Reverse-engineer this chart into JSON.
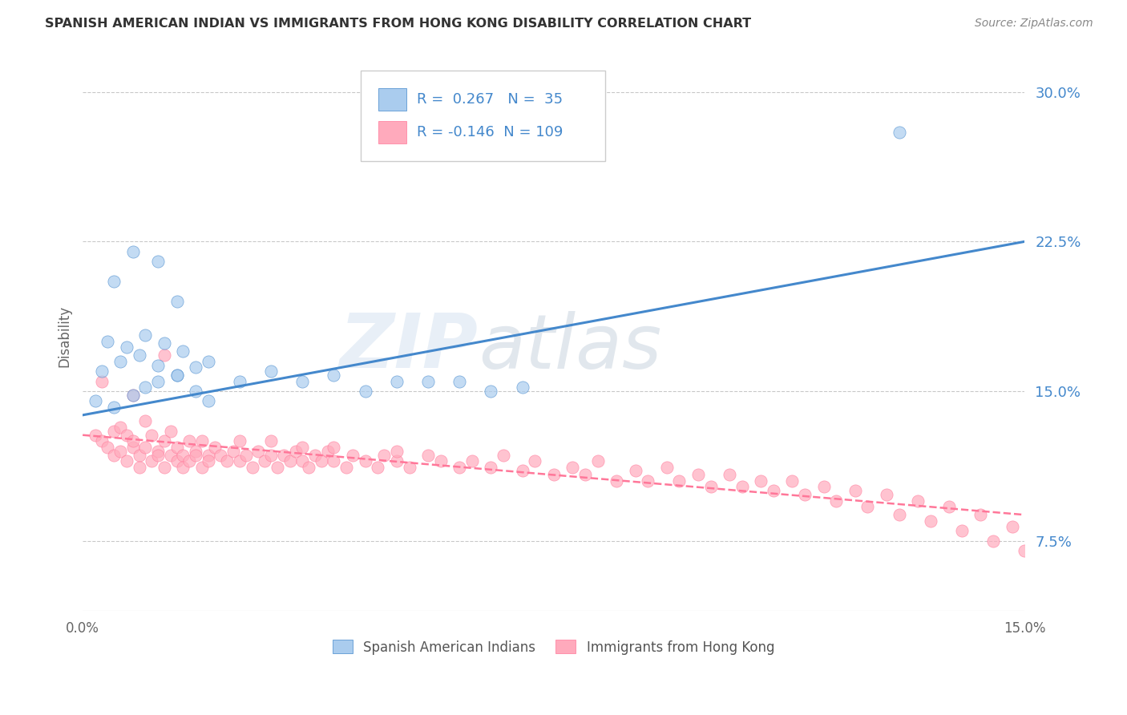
{
  "title": "SPANISH AMERICAN INDIAN VS IMMIGRANTS FROM HONG KONG DISABILITY CORRELATION CHART",
  "source": "Source: ZipAtlas.com",
  "ylabel": "Disability",
  "xmin": 0.0,
  "xmax": 0.15,
  "ymin": 0.04,
  "ymax": 0.315,
  "yticks": [
    0.075,
    0.15,
    0.225,
    0.3
  ],
  "ytick_labels": [
    "7.5%",
    "15.0%",
    "22.5%",
    "30.0%"
  ],
  "xtick_labels": [
    "0.0%",
    "15.0%"
  ],
  "blue_color": "#AACCEE",
  "pink_color": "#FFAABC",
  "blue_line_color": "#4488CC",
  "pink_line_color": "#FF7799",
  "legend_text_color": "#4488CC",
  "legend_R1": "R =  0.267",
  "legend_N1": "N =  35",
  "legend_R2": "R = -0.146",
  "legend_N2": "N = 109",
  "label1": "Spanish American Indians",
  "label2": "Immigrants from Hong Kong",
  "watermark_zip": "ZIP",
  "watermark_atlas": "atlas",
  "blue_trendline_x": [
    0.0,
    0.15
  ],
  "blue_trendline_y": [
    0.138,
    0.225
  ],
  "pink_trendline_x": [
    0.0,
    0.15
  ],
  "pink_trendline_y": [
    0.128,
    0.088
  ],
  "blue_scatter_x": [
    0.002,
    0.005,
    0.008,
    0.01,
    0.012,
    0.015,
    0.018,
    0.02,
    0.003,
    0.006,
    0.009,
    0.012,
    0.015,
    0.018,
    0.004,
    0.007,
    0.01,
    0.013,
    0.016,
    0.02,
    0.025,
    0.03,
    0.035,
    0.04,
    0.045,
    0.05,
    0.055,
    0.06,
    0.065,
    0.07,
    0.005,
    0.008,
    0.012,
    0.015,
    0.13
  ],
  "blue_scatter_y": [
    0.145,
    0.142,
    0.148,
    0.152,
    0.155,
    0.158,
    0.15,
    0.145,
    0.16,
    0.165,
    0.168,
    0.163,
    0.158,
    0.162,
    0.175,
    0.172,
    0.178,
    0.174,
    0.17,
    0.165,
    0.155,
    0.16,
    0.155,
    0.158,
    0.15,
    0.155,
    0.155,
    0.155,
    0.15,
    0.152,
    0.205,
    0.22,
    0.215,
    0.195,
    0.28
  ],
  "pink_scatter_x": [
    0.002,
    0.003,
    0.004,
    0.005,
    0.005,
    0.006,
    0.006,
    0.007,
    0.007,
    0.008,
    0.008,
    0.009,
    0.009,
    0.01,
    0.01,
    0.011,
    0.011,
    0.012,
    0.012,
    0.013,
    0.013,
    0.014,
    0.014,
    0.015,
    0.015,
    0.016,
    0.016,
    0.017,
    0.017,
    0.018,
    0.018,
    0.019,
    0.019,
    0.02,
    0.02,
    0.021,
    0.022,
    0.023,
    0.024,
    0.025,
    0.025,
    0.026,
    0.027,
    0.028,
    0.029,
    0.03,
    0.03,
    0.031,
    0.032,
    0.033,
    0.034,
    0.035,
    0.035,
    0.036,
    0.037,
    0.038,
    0.039,
    0.04,
    0.04,
    0.042,
    0.043,
    0.045,
    0.047,
    0.048,
    0.05,
    0.05,
    0.052,
    0.055,
    0.057,
    0.06,
    0.062,
    0.065,
    0.067,
    0.07,
    0.072,
    0.075,
    0.078,
    0.08,
    0.082,
    0.085,
    0.088,
    0.09,
    0.093,
    0.095,
    0.098,
    0.1,
    0.103,
    0.105,
    0.108,
    0.11,
    0.113,
    0.115,
    0.118,
    0.12,
    0.123,
    0.125,
    0.128,
    0.13,
    0.133,
    0.135,
    0.138,
    0.14,
    0.143,
    0.145,
    0.148,
    0.15,
    0.003,
    0.008,
    0.013
  ],
  "pink_scatter_y": [
    0.128,
    0.125,
    0.122,
    0.13,
    0.118,
    0.132,
    0.12,
    0.128,
    0.115,
    0.122,
    0.125,
    0.118,
    0.112,
    0.135,
    0.122,
    0.128,
    0.115,
    0.12,
    0.118,
    0.125,
    0.112,
    0.118,
    0.13,
    0.115,
    0.122,
    0.118,
    0.112,
    0.125,
    0.115,
    0.12,
    0.118,
    0.112,
    0.125,
    0.118,
    0.115,
    0.122,
    0.118,
    0.115,
    0.12,
    0.115,
    0.125,
    0.118,
    0.112,
    0.12,
    0.115,
    0.118,
    0.125,
    0.112,
    0.118,
    0.115,
    0.12,
    0.115,
    0.122,
    0.112,
    0.118,
    0.115,
    0.12,
    0.115,
    0.122,
    0.112,
    0.118,
    0.115,
    0.112,
    0.118,
    0.115,
    0.12,
    0.112,
    0.118,
    0.115,
    0.112,
    0.115,
    0.112,
    0.118,
    0.11,
    0.115,
    0.108,
    0.112,
    0.108,
    0.115,
    0.105,
    0.11,
    0.105,
    0.112,
    0.105,
    0.108,
    0.102,
    0.108,
    0.102,
    0.105,
    0.1,
    0.105,
    0.098,
    0.102,
    0.095,
    0.1,
    0.092,
    0.098,
    0.088,
    0.095,
    0.085,
    0.092,
    0.08,
    0.088,
    0.075,
    0.082,
    0.07,
    0.155,
    0.148,
    0.168
  ]
}
